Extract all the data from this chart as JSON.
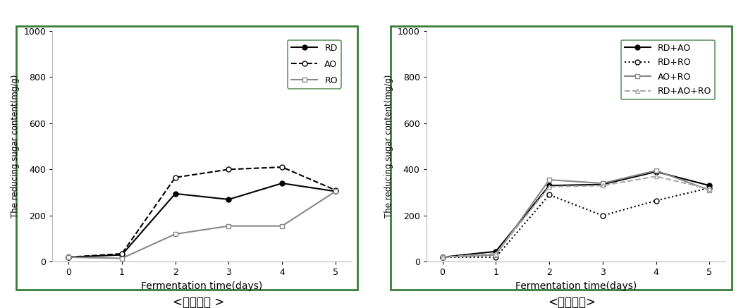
{
  "x": [
    0,
    1,
    2,
    3,
    4,
    5
  ],
  "left_chart": {
    "RD": [
      20,
      30,
      295,
      270,
      340,
      305
    ],
    "AO": [
      20,
      35,
      365,
      400,
      410,
      310
    ],
    "RO": [
      20,
      15,
      120,
      155,
      155,
      305
    ],
    "xlabel": "Fermentation time(days)",
    "ylabel": "The reducing sugar content(mg/g)",
    "ylim": [
      0,
      1000
    ],
    "yticks": [
      0,
      200,
      400,
      600,
      800,
      1000
    ],
    "xticks": [
      0,
      1,
      2,
      3,
      4,
      5
    ],
    "caption": "<단독발효 >"
  },
  "right_chart": {
    "RD+AO": [
      20,
      45,
      330,
      335,
      390,
      330
    ],
    "RD+RO": [
      20,
      20,
      290,
      200,
      265,
      320
    ],
    "AO+RO": [
      20,
      30,
      355,
      340,
      395,
      310
    ],
    "RD+AO+RO": [
      20,
      35,
      325,
      330,
      370,
      315
    ],
    "xlabel": "Fermentation time(days)",
    "ylabel": "The reducing sugar content(mg/g)",
    "ylim": [
      0,
      1000
    ],
    "yticks": [
      0,
      200,
      400,
      600,
      800,
      1000
    ],
    "xticks": [
      0,
      1,
      2,
      3,
      4,
      5
    ],
    "caption": "<혼합발효>"
  },
  "border_color": "#3a7d3a",
  "spine_color": "#bbbbbb",
  "background_color": "#ffffff",
  "line_color_black": "#000000",
  "line_color_gray": "#888888",
  "line_color_lightgray": "#aaaaaa"
}
